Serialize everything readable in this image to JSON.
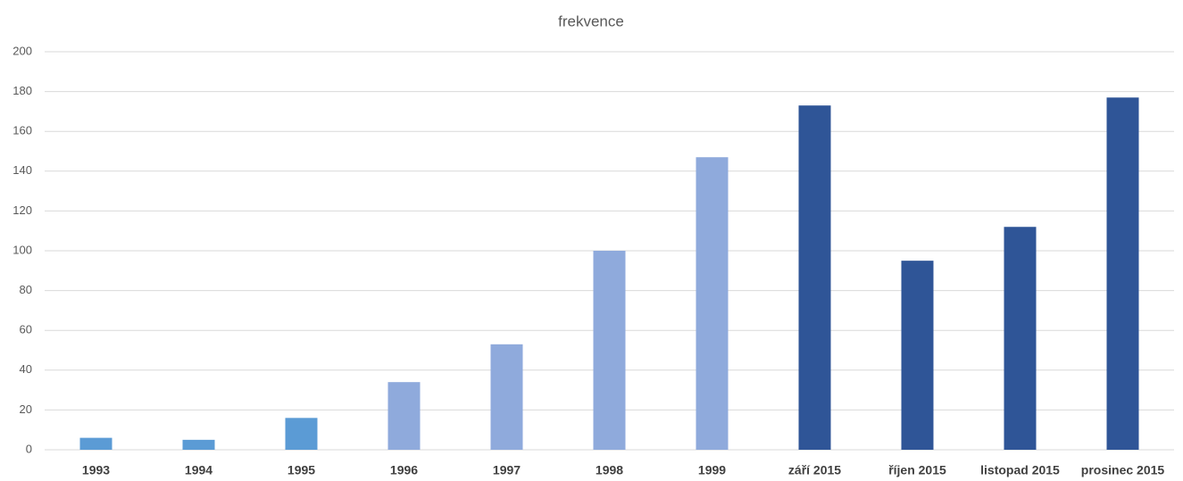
{
  "chart_data": {
    "type": "bar",
    "title": "frekvence",
    "categories": [
      "1993",
      "1994",
      "1995",
      "1996",
      "1997",
      "1998",
      "1999",
      "září 2015",
      "říjen 2015",
      "listopad 2015",
      "prosinec 2015"
    ],
    "values": [
      6,
      5,
      16,
      34,
      53,
      100,
      147,
      173,
      95,
      112,
      177
    ],
    "colors": [
      "#5b9bd5",
      "#5b9bd5",
      "#5b9bd5",
      "#8faadc",
      "#8faadc",
      "#8faadc",
      "#8faadc",
      "#2f5597",
      "#2f5597",
      "#2f5597",
      "#2f5597"
    ],
    "ylim": [
      0,
      200
    ],
    "yticks": [
      0,
      20,
      40,
      60,
      80,
      100,
      120,
      140,
      160,
      180,
      200
    ],
    "grid": true
  }
}
